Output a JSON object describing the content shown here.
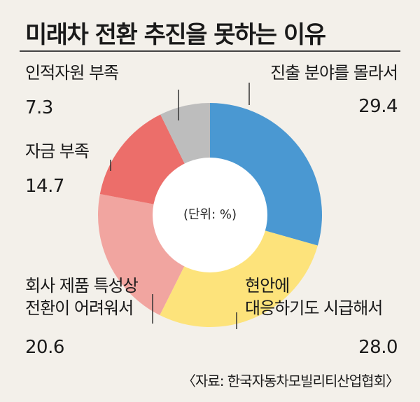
{
  "title": "미래차 전환 추진을 못하는 이유",
  "source": "〈자료: 한국자동차모빌리티산업협회〉",
  "chart_data": {
    "type": "pie",
    "title": "미래차 전환 추진을 못하는 이유",
    "center_label": "(단위: %)",
    "slices": [
      {
        "label_lines": [
          "진출 분야를 몰라서"
        ],
        "value": 29.4,
        "value_text": "29.4",
        "color": "#4a98d2"
      },
      {
        "label_lines": [
          "현안에",
          "대응하기도 시급해서"
        ],
        "value": 28.0,
        "value_text": "28.0",
        "color": "#fde37b"
      },
      {
        "label_lines": [
          "회사 제품 특성상",
          "전환이 어려워서"
        ],
        "value": 20.6,
        "value_text": "20.6",
        "color": "#f1a5a0"
      },
      {
        "label_lines": [
          "자금 부족"
        ],
        "value": 14.7,
        "value_text": "14.7",
        "color": "#ec6e6a"
      },
      {
        "label_lines": [
          "인적자원 부족"
        ],
        "value": 7.3,
        "value_text": "7.3",
        "color": "#bdbdbd"
      }
    ]
  }
}
